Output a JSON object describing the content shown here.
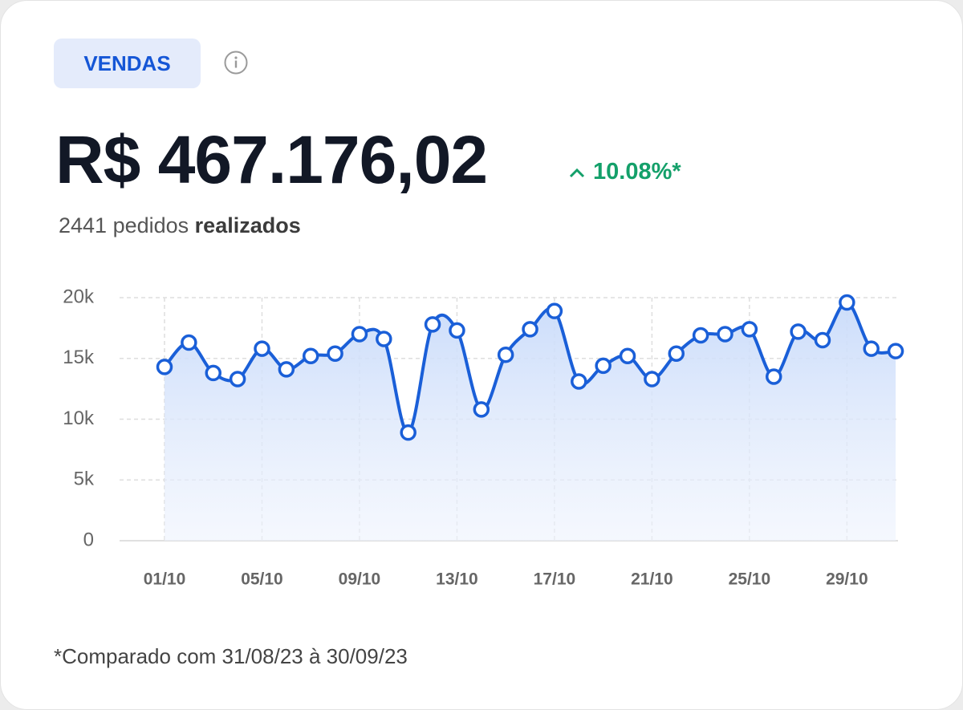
{
  "header": {
    "badge": "VENDAS",
    "amount": "R$ 467.176,02",
    "change": "10.08%*",
    "orders_count": "2441 pedidos",
    "orders_label": "realizados"
  },
  "chart_data": {
    "type": "line",
    "categories": [
      "01/10",
      null,
      null,
      null,
      "05/10",
      null,
      null,
      null,
      "09/10",
      null,
      null,
      null,
      "13/10",
      null,
      null,
      null,
      "17/10",
      null,
      null,
      null,
      "21/10",
      null,
      null,
      null,
      "25/10",
      null,
      null,
      null,
      "29/10",
      null,
      null
    ],
    "series": [
      {
        "color": "#1a5fd8",
        "values": [
          14300,
          16300,
          13800,
          13300,
          15800,
          14100,
          15200,
          15400,
          17000,
          16600,
          8900,
          17800,
          17300,
          10800,
          15300,
          17400,
          18900,
          13100,
          14400,
          15200,
          13300,
          15400,
          16900,
          17000,
          17400,
          13500,
          17200,
          16500,
          19600,
          15800,
          15600
        ]
      }
    ],
    "ylim": [
      0,
      20000
    ],
    "yticks": [
      0,
      {
        "value": 5000,
        "label": "5k"
      },
      {
        "value": 10000,
        "label": "10k"
      },
      {
        "value": 15000,
        "label": "15k"
      },
      {
        "value": 20000,
        "label": "20k"
      }
    ],
    "grid": true
  },
  "footnote": "*Comparado com 31/08/23 à 30/09/23"
}
